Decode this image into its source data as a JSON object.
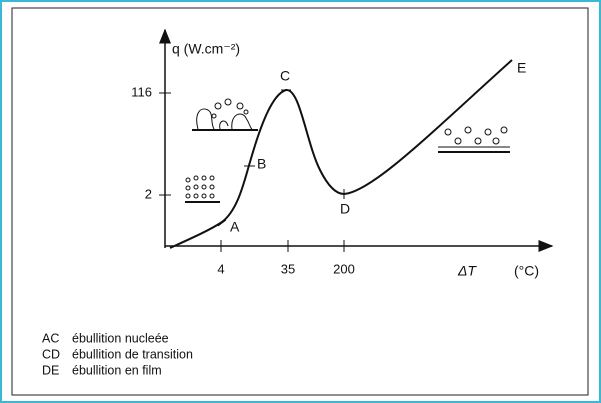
{
  "axes": {
    "y_label": "q (W.cm⁻²)",
    "y_ticks": [
      "116",
      "2"
    ],
    "x_ticks": [
      "4",
      "35",
      "200"
    ],
    "x_label": "ΔT",
    "x_unit": "(°C)"
  },
  "points": [
    "A",
    "B",
    "C",
    "D",
    "E"
  ],
  "legend": [
    {
      "code": "AC",
      "text": "ébullition nucleée"
    },
    {
      "code": "CD",
      "text": "ébullition de transition"
    },
    {
      "code": "DE",
      "text": "ébullition en film"
    }
  ]
}
